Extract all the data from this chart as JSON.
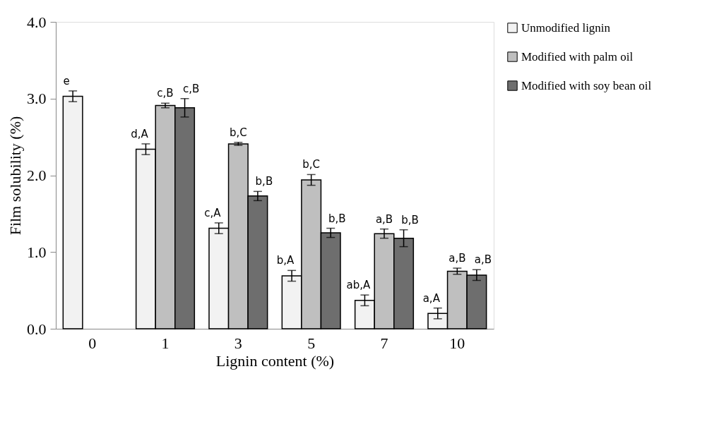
{
  "chart_data": {
    "type": "bar",
    "xlabel": "Lignin content (%)",
    "ylabel": "Film solubility (%)",
    "categories": [
      "0",
      "1",
      "3",
      "5",
      "7",
      "10"
    ],
    "series": [
      {
        "name": "Unmodified lignin",
        "color": "#f2f2f2",
        "values": [
          3.03,
          2.34,
          1.31,
          0.69,
          0.37,
          0.2
        ],
        "errors": [
          0.07,
          0.07,
          0.07,
          0.07,
          0.07,
          0.07
        ],
        "value_labels": [
          "e",
          "d,A",
          "c,A",
          "b,A",
          "ab,A",
          "a,A"
        ]
      },
      {
        "name": "Modified with palm oil",
        "color": "#bfbfbf",
        "values": [
          null,
          2.91,
          2.41,
          1.94,
          1.24,
          0.75
        ],
        "errors": [
          null,
          0.03,
          0.02,
          0.07,
          0.06,
          0.04
        ],
        "value_labels": [
          null,
          "c,B",
          "b,C",
          "b,C",
          "a,B",
          "a,B"
        ]
      },
      {
        "name": "Modified with soy bean oil",
        "color": "#6e6e6e",
        "values": [
          null,
          2.88,
          1.73,
          1.25,
          1.18,
          0.7
        ],
        "errors": [
          null,
          0.12,
          0.06,
          0.06,
          0.11,
          0.07
        ],
        "value_labels": [
          null,
          "c,B",
          "b,B",
          "b,B",
          "b,B",
          "a,B"
        ]
      }
    ],
    "ylim": [
      0,
      4
    ],
    "yticks": [
      {
        "value": 0,
        "label": "0.0"
      },
      {
        "value": 1,
        "label": "1.0"
      },
      {
        "value": 2,
        "label": "2.0"
      },
      {
        "value": 3,
        "label": "3.0"
      },
      {
        "value": 4,
        "label": "4.0"
      }
    ],
    "grid": false,
    "legend": "top right"
  }
}
